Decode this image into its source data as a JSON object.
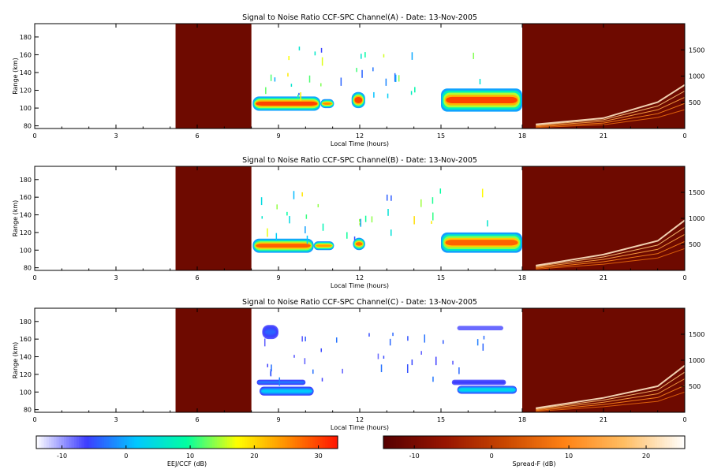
{
  "chart_data": [
    {
      "type": "heatmap",
      "title": "Signal to Noise Ratio CCF-SPC Channel(A) - Date: 13-Nov-2005",
      "xlabel": "Local Time (hours)",
      "ylabel": "Range (km)",
      "xlim": [
        0,
        24
      ],
      "ylim": [
        77,
        195
      ],
      "y2lim": [
        0,
        2000
      ],
      "xticks": [
        "0",
        "3",
        "6",
        "9",
        "12",
        "15",
        "18",
        "21",
        "0"
      ],
      "yticks": [
        80,
        100,
        120,
        140,
        160,
        180
      ],
      "y2ticks": [
        500,
        1000,
        1500
      ],
      "blocks": [
        {
          "kind": "no-data",
          "x0": 5.2,
          "x1": 8.0
        },
        {
          "kind": "spread-f-background",
          "x0": 18.0,
          "x1": 24.0
        }
      ],
      "echo_regions": [
        {
          "x0": 8.05,
          "x1": 10.55,
          "y0": 97,
          "y1": 113,
          "peak_db": 30
        },
        {
          "x0": 10.55,
          "x1": 11.05,
          "y0": 100,
          "y1": 110,
          "peak_db": 25
        },
        {
          "x0": 11.7,
          "x1": 12.2,
          "y0": 100,
          "y1": 118,
          "peak_db": 30
        },
        {
          "x0": 15.0,
          "x1": 18.0,
          "y0": 96,
          "y1": 122,
          "peak_db": 30
        }
      ],
      "spread_f_traces": [
        {
          "x": [
            18.5,
            21.0,
            23.0,
            24.0
          ],
          "y2": [
            30,
            120,
            350,
            600
          ]
        }
      ]
    },
    {
      "type": "heatmap",
      "title": "Signal to Noise Ratio CCF-SPC Channel(B) - Date: 13-Nov-2005",
      "xlabel": "Local Time (hours)",
      "ylabel": "Range (km)",
      "xlim": [
        0,
        24
      ],
      "ylim": [
        77,
        195
      ],
      "y2lim": [
        0,
        2000
      ],
      "xticks": [
        "0",
        "3",
        "6",
        "9",
        "12",
        "15",
        "18",
        "21",
        "0"
      ],
      "yticks": [
        80,
        100,
        120,
        140,
        160,
        180
      ],
      "y2ticks": [
        500,
        1000,
        1500
      ],
      "blocks": [
        {
          "kind": "no-data",
          "x0": 5.2,
          "x1": 8.0
        },
        {
          "kind": "spread-f-background",
          "x0": 18.0,
          "x1": 24.0
        }
      ],
      "echo_regions": [
        {
          "x0": 8.05,
          "x1": 10.3,
          "y0": 97,
          "y1": 113,
          "peak_db": 28
        },
        {
          "x0": 10.3,
          "x1": 11.05,
          "y0": 100,
          "y1": 110,
          "peak_db": 24
        },
        {
          "x0": 11.75,
          "x1": 12.2,
          "y0": 100,
          "y1": 114,
          "peak_db": 27
        },
        {
          "x0": 15.0,
          "x1": 18.0,
          "y0": 97,
          "y1": 120,
          "peak_db": 28
        }
      ],
      "spread_f_traces": [
        {
          "x": [
            18.5,
            21.0,
            23.0,
            24.0
          ],
          "y2": [
            40,
            200,
            400,
            700
          ]
        }
      ]
    },
    {
      "type": "heatmap",
      "title": "Signal to Noise Ratio CCF-SPC Channel(C) - Date: 13-Nov-2005",
      "xlabel": "Local Time (hours)",
      "ylabel": "Range (km)",
      "xlim": [
        0,
        24
      ],
      "ylim": [
        77,
        195
      ],
      "y2lim": [
        0,
        2000
      ],
      "xticks": [
        "0",
        "3",
        "6",
        "9",
        "12",
        "15",
        "18",
        "21",
        "0"
      ],
      "yticks": [
        80,
        100,
        120,
        140,
        160,
        180
      ],
      "y2ticks": [
        500,
        1000,
        1500
      ],
      "blocks": [
        {
          "kind": "no-data",
          "x0": 5.2,
          "x1": 8.0
        },
        {
          "kind": "spread-f-background",
          "x0": 18.0,
          "x1": 24.0
        }
      ],
      "echo_regions": [
        {
          "x0": 8.3,
          "x1": 10.3,
          "y0": 96,
          "y1": 106,
          "peak_db": 2
        },
        {
          "x0": 8.2,
          "x1": 10.0,
          "y0": 108,
          "y1": 114,
          "peak_db": -3
        },
        {
          "x0": 8.4,
          "x1": 9.0,
          "y0": 160,
          "y1": 176,
          "peak_db": -4
        },
        {
          "x0": 15.6,
          "x1": 17.8,
          "y0": 98,
          "y1": 107,
          "peak_db": 4
        },
        {
          "x0": 15.4,
          "x1": 17.4,
          "y0": 108,
          "y1": 114,
          "peak_db": -6
        },
        {
          "x0": 15.6,
          "x1": 17.3,
          "y0": 170,
          "y1": 175,
          "peak_db": -8
        }
      ],
      "spread_f_traces": [
        {
          "x": [
            18.5,
            21.0,
            23.0,
            24.0
          ],
          "y2": [
            30,
            180,
            350,
            650
          ]
        }
      ]
    }
  ],
  "colorbars": [
    {
      "label": "EEJ/CCF (dB)",
      "ticks": [
        "-10",
        "0",
        "10",
        "20",
        "30"
      ],
      "range": [
        -14,
        33
      ],
      "colormap": [
        "#ffffff",
        "#1a1aff",
        "#00ffff",
        "#ffff00",
        "#ff0000"
      ]
    },
    {
      "label": "Spread-F (dB)",
      "ticks": [
        "-10",
        "0",
        "10",
        "20"
      ],
      "range": [
        -14,
        25
      ],
      "colormap": [
        "#560000",
        "#b02800",
        "#ff7a10",
        "#ffc060",
        "#ffffff"
      ]
    }
  ],
  "colors": {
    "no_data": "#6e0a00",
    "spread_f_background": "#6e0a00"
  }
}
